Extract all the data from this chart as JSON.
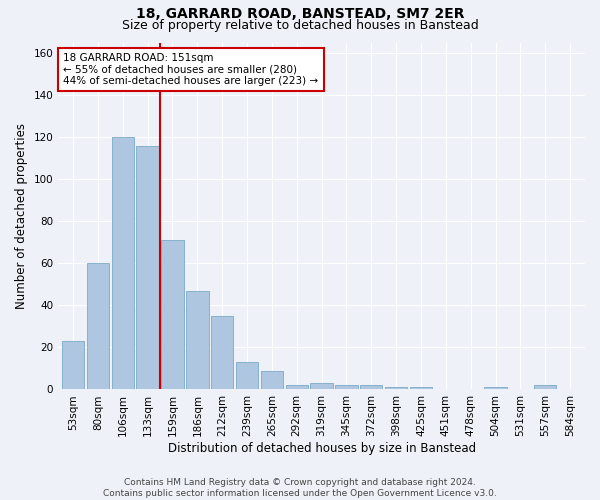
{
  "title": "18, GARRARD ROAD, BANSTEAD, SM7 2ER",
  "subtitle": "Size of property relative to detached houses in Banstead",
  "xlabel": "Distribution of detached houses by size in Banstead",
  "ylabel": "Number of detached properties",
  "categories": [
    "53sqm",
    "80sqm",
    "106sqm",
    "133sqm",
    "159sqm",
    "186sqm",
    "212sqm",
    "239sqm",
    "265sqm",
    "292sqm",
    "319sqm",
    "345sqm",
    "372sqm",
    "398sqm",
    "425sqm",
    "451sqm",
    "478sqm",
    "504sqm",
    "531sqm",
    "557sqm",
    "584sqm"
  ],
  "values": [
    23,
    60,
    120,
    116,
    71,
    47,
    35,
    13,
    9,
    2,
    3,
    2,
    2,
    1,
    1,
    0,
    0,
    1,
    0,
    2,
    0
  ],
  "bar_color": "#aec6df",
  "bar_edge_color": "#7aaac8",
  "vline_color": "#cc0000",
  "vline_x_index": 3.5,
  "ylim": [
    0,
    165
  ],
  "yticks": [
    0,
    20,
    40,
    60,
    80,
    100,
    120,
    140,
    160
  ],
  "annotation_text": "18 GARRARD ROAD: 151sqm\n← 55% of detached houses are smaller (280)\n44% of semi-detached houses are larger (223) →",
  "annotation_box_color": "#ffffff",
  "annotation_box_edge": "#cc0000",
  "footer": "Contains HM Land Registry data © Crown copyright and database right 2024.\nContains public sector information licensed under the Open Government Licence v3.0.",
  "bg_color": "#eef2f8",
  "title_fontsize": 10,
  "subtitle_fontsize": 9,
  "axis_label_fontsize": 8.5,
  "tick_fontsize": 7.5,
  "annotation_fontsize": 7.5,
  "footer_fontsize": 6.5,
  "grid_color": "#ffffff",
  "grid_linewidth": 0.8
}
